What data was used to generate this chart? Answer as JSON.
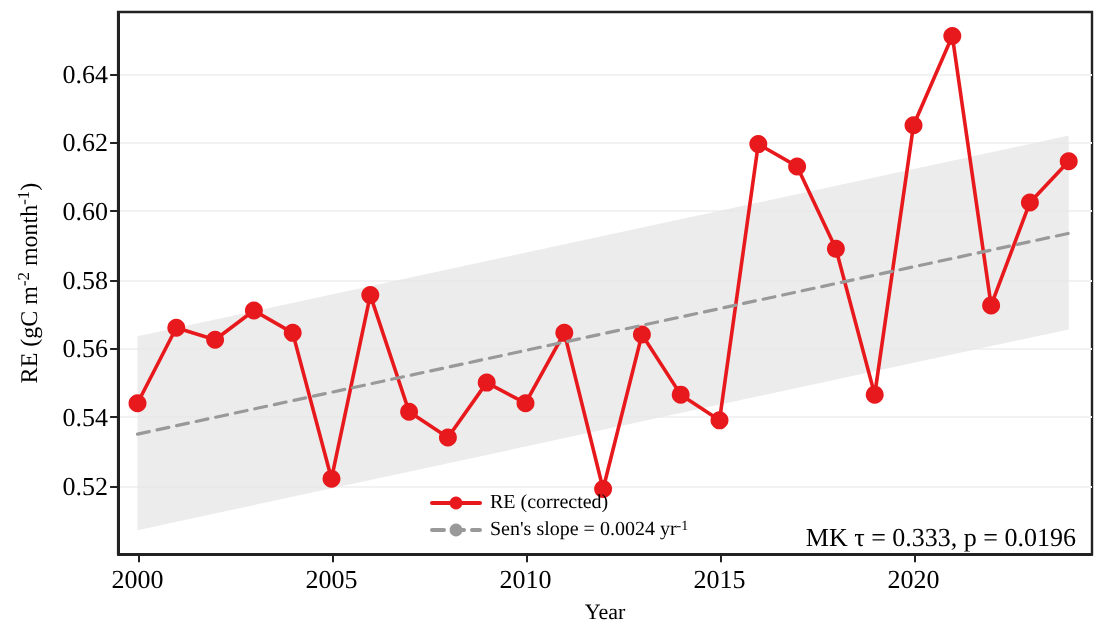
{
  "chart_data": {
    "type": "line",
    "xlabel": "Year",
    "ylabel": "RE (gC m$^{-2}$ month$^{-1}$)",
    "x": [
      2000,
      2001,
      2002,
      2003,
      2004,
      2005,
      2006,
      2007,
      2008,
      2009,
      2010,
      2011,
      2012,
      2013,
      2014,
      2015,
      2016,
      2017,
      2018,
      2019,
      2020,
      2021,
      2022,
      2023,
      2024
    ],
    "series": [
      {
        "name": "RE (corrected)",
        "color": "#e8191c",
        "marker": "circle",
        "line_style": "solid",
        "values": [
          0.544,
          0.566,
          0.5625,
          0.571,
          0.5645,
          0.522,
          0.5755,
          0.5415,
          0.534,
          0.55,
          0.544,
          0.5645,
          0.519,
          0.564,
          0.5465,
          0.539,
          0.6195,
          0.613,
          0.589,
          0.5465,
          0.625,
          0.651,
          0.5725,
          0.6025,
          0.6145
        ]
      },
      {
        "name": "Sen's slope = 0.0024 yr$^{-1}$",
        "color": "#999999",
        "marker": "none",
        "line_style": "dashed",
        "x": [
          2000,
          2024
        ],
        "values": [
          0.535,
          0.5935
        ],
        "lower": [
          0.507,
          0.5655
        ],
        "upper": [
          0.5635,
          0.622
        ]
      }
    ],
    "xlim": [
      1999.5,
      2024.6
    ],
    "xticks": [
      2000,
      2005,
      2010,
      2015,
      2020
    ],
    "ylim": [
      0.5,
      0.658
    ],
    "yticks": [
      0.52,
      0.54,
      0.56,
      0.58,
      {
        "value": 0.6,
        "label": "0.60"
      },
      0.62,
      0.64
    ],
    "grid": "y",
    "legend": "bottom",
    "annotations": [
      "MK τ = 0.333, p = 0.0196"
    ]
  }
}
